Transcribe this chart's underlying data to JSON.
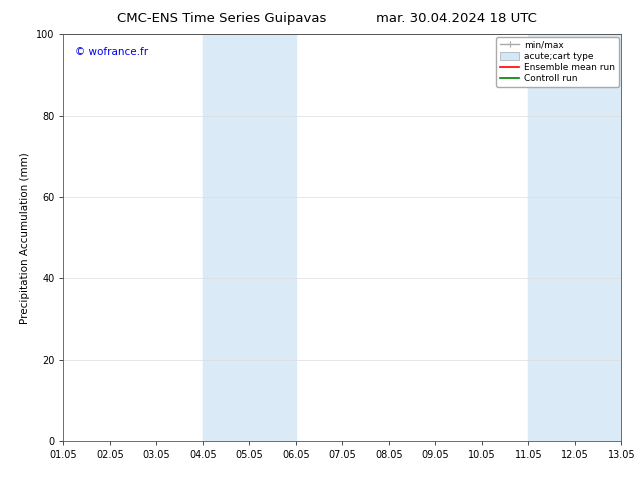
{
  "title_left": "CMC-ENS Time Series Guipavas",
  "title_right": "mar. 30.04.2024 18 UTC",
  "ylabel": "Precipitation Accumulation (mm)",
  "xlim": [
    0,
    12
  ],
  "ylim": [
    0,
    100
  ],
  "yticks": [
    0,
    20,
    40,
    60,
    80,
    100
  ],
  "xtick_labels": [
    "01.05",
    "02.05",
    "03.05",
    "04.05",
    "05.05",
    "06.05",
    "07.05",
    "08.05",
    "09.05",
    "10.05",
    "11.05",
    "12.05",
    "13.05"
  ],
  "shaded_regions": [
    {
      "xmin": 3.0,
      "xmax": 5.0,
      "color": "#daeaf7"
    },
    {
      "xmin": 10.0,
      "xmax": 12.0,
      "color": "#daeaf7"
    }
  ],
  "watermark_text": "© wofrance.fr",
  "watermark_color": "#0000ee",
  "legend_items": [
    {
      "label": "min/max",
      "color": "#aaaaaa",
      "lw": 1.0,
      "type": "errorbar"
    },
    {
      "label": "acute;cart type",
      "color": "#d0e8f8",
      "lw": 6,
      "type": "patch"
    },
    {
      "label": "Ensemble mean run",
      "color": "red",
      "lw": 1.2,
      "type": "line"
    },
    {
      "label": "Controll run",
      "color": "green",
      "lw": 1.2,
      "type": "line"
    }
  ],
  "bg_color": "#ffffff",
  "grid_color": "#dddddd",
  "title_fontsize": 9.5,
  "label_fontsize": 7.5,
  "tick_fontsize": 7,
  "watermark_fontsize": 7.5,
  "legend_fontsize": 6.5
}
